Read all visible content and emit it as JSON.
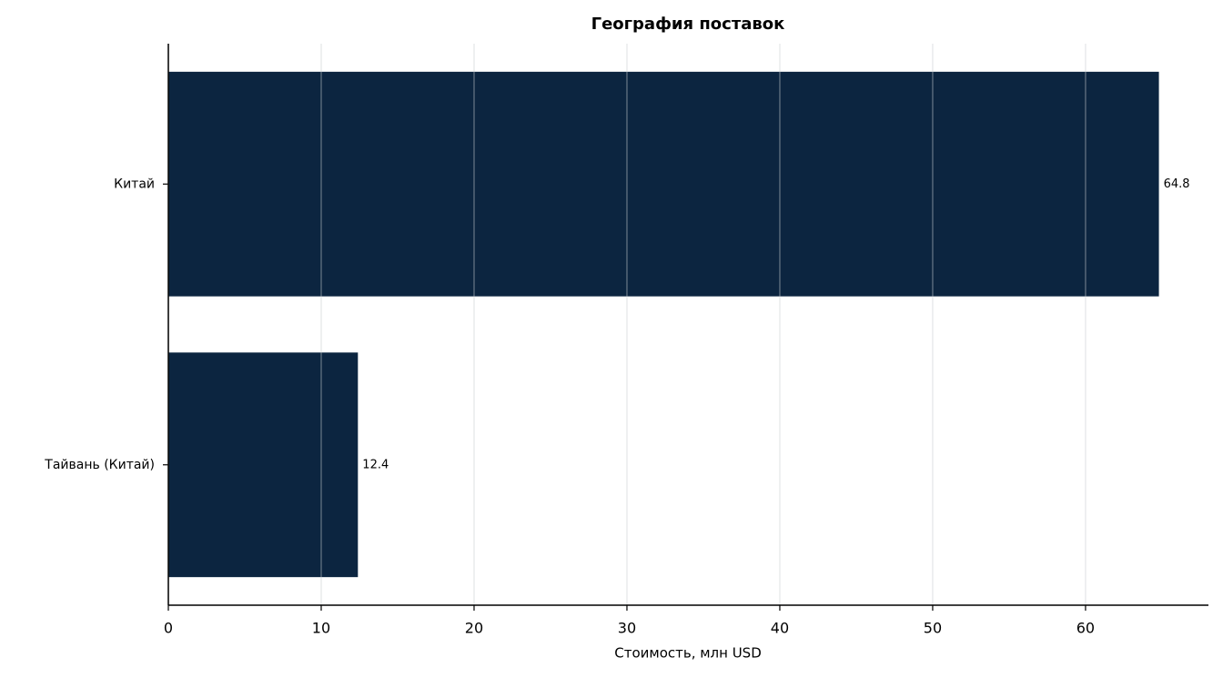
{
  "chart_data": {
    "type": "barh",
    "title": "География поставок",
    "x_label": "Стоимость, млн USD",
    "categories": [
      "Китай",
      "Тайвань (Китай)"
    ],
    "values": [
      64.8,
      12.4
    ],
    "color": "#0c2540",
    "xlim": [
      0,
      68.04
    ],
    "xticks": [
      0,
      10,
      20,
      30,
      40,
      50,
      60
    ],
    "grid": true
  }
}
